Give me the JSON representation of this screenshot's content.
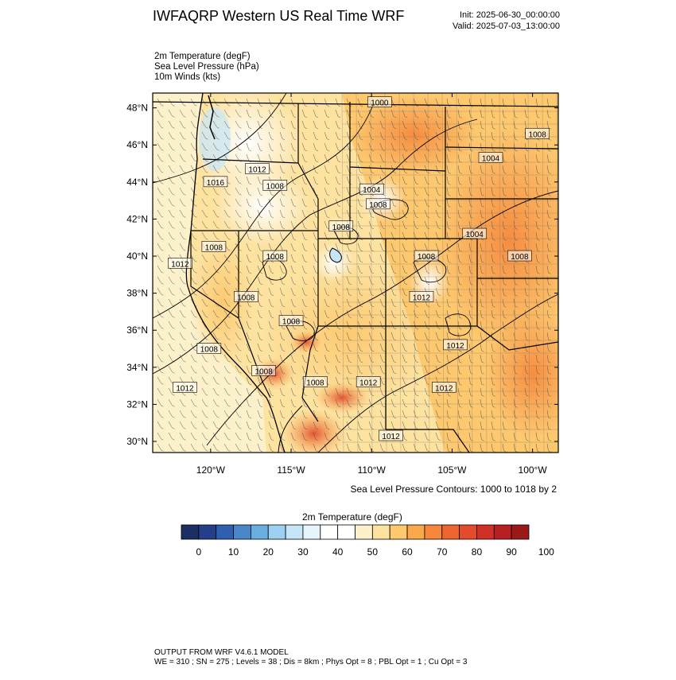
{
  "header": {
    "title": "IWFAQRP Western US Real Time WRF",
    "init": "Init: 2025-06-30_00:00:00",
    "valid": "Valid: 2025-07-03_13:00:00"
  },
  "fields": [
    "2m Temperature   (degF)",
    "Sea Level Pressure   (hPa)",
    "10m Winds   (kts)"
  ],
  "map": {
    "lat_labels": [
      "48°N",
      "46°N",
      "44°N",
      "42°N",
      "40°N",
      "38°N",
      "36°N",
      "34°N",
      "32°N",
      "30°N"
    ],
    "lon_labels": [
      "120°W",
      "115°W",
      "110°W",
      "105°W",
      "100°W"
    ],
    "lat_values": [
      48,
      46,
      44,
      42,
      40,
      38,
      36,
      34,
      32,
      30
    ],
    "lon_values": [
      -120,
      -115,
      -110,
      -105,
      -100
    ],
    "lat_range": [
      29.4,
      48.8
    ],
    "lon_range": [
      -123.6,
      -98.4
    ],
    "pressure_labels": [
      {
        "text": "1000",
        "lon": -109.5,
        "lat": 48.3
      },
      {
        "text": "1008",
        "lon": -99.7,
        "lat": 46.6
      },
      {
        "text": "1004",
        "lon": -102.6,
        "lat": 45.3
      },
      {
        "text": "1012",
        "lon": -117.1,
        "lat": 44.7
      },
      {
        "text": "1016",
        "lon": -119.7,
        "lat": 44.0
      },
      {
        "text": "1008",
        "lon": -116.0,
        "lat": 43.8
      },
      {
        "text": "1004",
        "lon": -110.0,
        "lat": 43.6
      },
      {
        "text": "1008",
        "lon": -109.6,
        "lat": 42.8
      },
      {
        "text": "1008",
        "lon": -111.9,
        "lat": 41.6
      },
      {
        "text": "1004",
        "lon": -103.6,
        "lat": 41.2
      },
      {
        "text": "1008",
        "lon": -119.8,
        "lat": 40.5
      },
      {
        "text": "1012",
        "lon": -121.9,
        "lat": 39.6
      },
      {
        "text": "1008",
        "lon": -116.0,
        "lat": 40.0
      },
      {
        "text": "1008",
        "lon": -106.6,
        "lat": 40.0
      },
      {
        "text": "1008",
        "lon": -100.8,
        "lat": 40.0
      },
      {
        "text": "1008",
        "lon": -117.8,
        "lat": 37.8
      },
      {
        "text": "1012",
        "lon": -106.9,
        "lat": 37.8
      },
      {
        "text": "1008",
        "lon": -115.0,
        "lat": 36.5
      },
      {
        "text": "1012",
        "lon": -104.8,
        "lat": 35.2
      },
      {
        "text": "1008",
        "lon": -120.1,
        "lat": 35.0
      },
      {
        "text": "1008",
        "lon": -116.7,
        "lat": 33.8
      },
      {
        "text": "1008",
        "lon": -113.5,
        "lat": 33.2
      },
      {
        "text": "1012",
        "lon": -110.2,
        "lat": 33.2
      },
      {
        "text": "1012",
        "lon": -105.5,
        "lat": 32.9
      },
      {
        "text": "1012",
        "lon": -121.6,
        "lat": 32.9
      },
      {
        "text": "1012",
        "lon": -108.8,
        "lat": 30.3
      }
    ]
  },
  "slp_note": "Sea Level Pressure Contours: 1000 to 1018 by 2",
  "colorbar": {
    "title": "2m Temperature  (degF)",
    "colors": [
      "#1b2f63",
      "#243f8a",
      "#2f5fae",
      "#4a87c8",
      "#6aaee0",
      "#9dd1f1",
      "#c6e6f8",
      "#e6f4fb",
      "#ffffff",
      "#ffffff",
      "#fdf1cb",
      "#fde2a0",
      "#fdc86e",
      "#f9a84a",
      "#f5863a",
      "#ee6530",
      "#e24b2c",
      "#cf3128",
      "#b81f23",
      "#9a1a1a"
    ],
    "tick_labels": [
      "0",
      "10",
      "20",
      "30",
      "40",
      "50",
      "60",
      "70",
      "80",
      "90",
      "100"
    ]
  },
  "footer": {
    "line1": "OUTPUT FROM WRF V4.6.1 MODEL",
    "line2": "WE = 310 ; SN = 275 ; Levels = 38 ; Dis = 8km ; Phys Opt = 8 ; PBL Opt = 1 ; Cu Opt = 3"
  }
}
